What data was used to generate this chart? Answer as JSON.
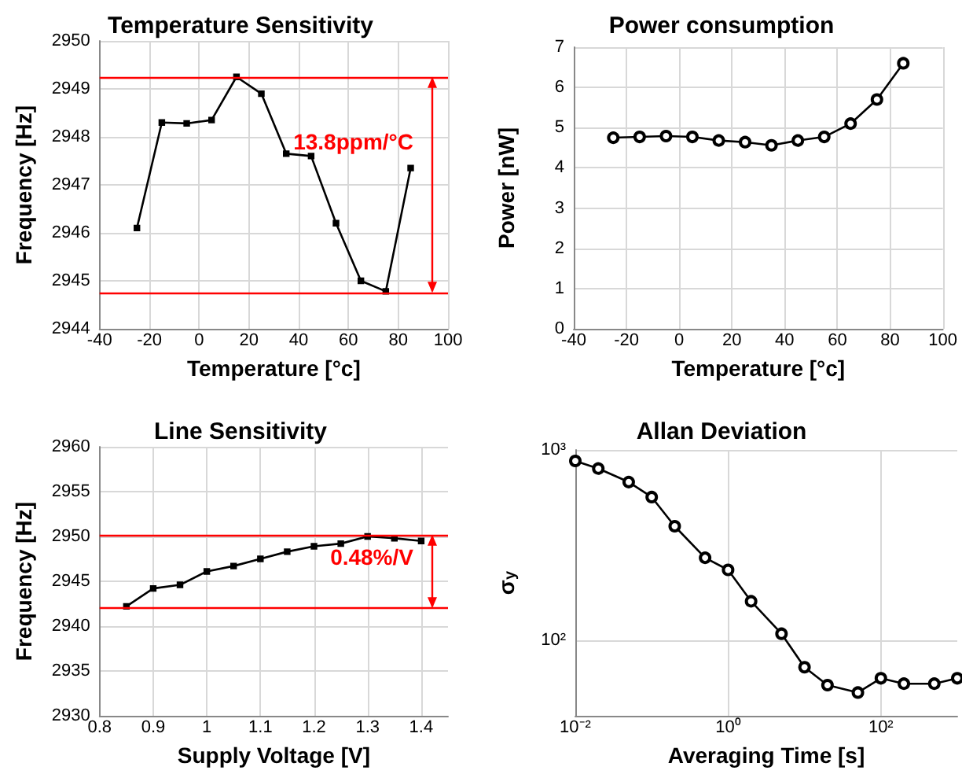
{
  "chart_data": [
    {
      "type": "line",
      "title": "Temperature Sensitivity",
      "xlabel": "Temperature [°c]",
      "ylabel": "Frequency [Hz]",
      "x": [
        -25,
        -15,
        -5,
        5,
        15,
        25,
        35,
        45,
        55,
        65,
        75,
        85
      ],
      "series": [
        {
          "color": "#000000",
          "values": [
            2946.1,
            2948.3,
            2948.28,
            2948.35,
            2949.25,
            2948.9,
            2947.65,
            2947.6,
            2946.2,
            2945.0,
            2944.78,
            2947.35
          ]
        }
      ],
      "xlim": [
        -40,
        100
      ],
      "xticks": [
        -40,
        -20,
        0,
        20,
        40,
        60,
        80,
        100
      ],
      "ylim": [
        2944,
        2950
      ],
      "yticks": [
        2944,
        2945,
        2946,
        2947,
        2948,
        2949,
        2950
      ],
      "ref_lines": [
        {
          "axis": "y",
          "value": 2949.25,
          "color": "#ff0000"
        },
        {
          "axis": "y",
          "value": 2944.75,
          "color": "#ff0000"
        }
      ],
      "annotations": [
        "13.8ppm/°C"
      ],
      "grid": true,
      "marker": "square",
      "line_style": "solid"
    },
    {
      "type": "line",
      "title": "Power consumption",
      "xlabel": "Temperature [°c]",
      "ylabel": "Power [nW]",
      "x": [
        -25,
        -15,
        -5,
        5,
        15,
        25,
        35,
        45,
        55,
        65,
        75,
        85
      ],
      "series": [
        {
          "color": "#000000",
          "values": [
            4.75,
            4.77,
            4.79,
            4.77,
            4.68,
            4.64,
            4.56,
            4.68,
            4.77,
            5.1,
            5.7,
            6.6
          ]
        }
      ],
      "xlim": [
        -40,
        100
      ],
      "xticks": [
        -40,
        -20,
        0,
        20,
        40,
        60,
        80,
        100
      ],
      "ylim": [
        0,
        7
      ],
      "yticks": [
        0,
        1,
        2,
        3,
        4,
        5,
        6,
        7
      ],
      "grid": true,
      "marker": "circle",
      "line_style": "solid"
    },
    {
      "type": "line",
      "title": "Line Sensitivity",
      "xlabel": "Supply Voltage [V]",
      "ylabel": "Frequency [Hz]",
      "x": [
        0.85,
        0.9,
        0.95,
        1.0,
        1.05,
        1.1,
        1.15,
        1.2,
        1.25,
        1.3,
        1.35,
        1.4
      ],
      "series": [
        {
          "color": "#000000",
          "values": [
            2942.2,
            2944.2,
            2944.6,
            2946.1,
            2946.7,
            2947.5,
            2948.3,
            2948.9,
            2949.2,
            2950.0,
            2949.8,
            2949.5
          ]
        }
      ],
      "xlim": [
        0.8,
        1.45
      ],
      "xticks": [
        0.8,
        0.9,
        1,
        1.1,
        1.2,
        1.3,
        1.4
      ],
      "ylim": [
        2930,
        2960
      ],
      "yticks": [
        2930,
        2935,
        2940,
        2945,
        2950,
        2955,
        2960
      ],
      "ref_lines": [
        {
          "axis": "y",
          "value": 2950.2,
          "color": "#ff0000"
        },
        {
          "axis": "y",
          "value": 2942.0,
          "color": "#ff0000"
        }
      ],
      "annotations": [
        "0.48%/V"
      ],
      "grid": true,
      "marker": "square",
      "line_style": "solid"
    },
    {
      "type": "line",
      "title": "Allan Deviation",
      "xlabel": "Averaging Time [s]",
      "ylabel": "σ$_{y}$",
      "x": [
        0.01,
        0.02,
        0.05,
        0.1,
        0.2,
        0.5,
        1,
        2,
        5,
        10,
        20,
        50,
        100,
        200,
        500,
        1000
      ],
      "series": [
        {
          "color": "#000000",
          "values": [
            875,
            798,
            678,
            565,
            397,
            271,
            234,
            160,
            108,
            72,
            58,
            53,
            63,
            59,
            59,
            63
          ]
        }
      ],
      "xlim": [
        0.01,
        1000
      ],
      "xticks": [
        {
          "value": 0.01,
          "label": "10⁻²"
        },
        {
          "value": 1,
          "label": "10⁰"
        },
        {
          "value": 100,
          "label": "10²"
        }
      ],
      "ylim": [
        40,
        1000
      ],
      "yticks": [
        {
          "value": 100,
          "label": "10²"
        },
        {
          "value": 1000,
          "label": "10³"
        }
      ],
      "log": "xy",
      "grid": true,
      "marker": "circle",
      "line_style": "solid"
    }
  ]
}
